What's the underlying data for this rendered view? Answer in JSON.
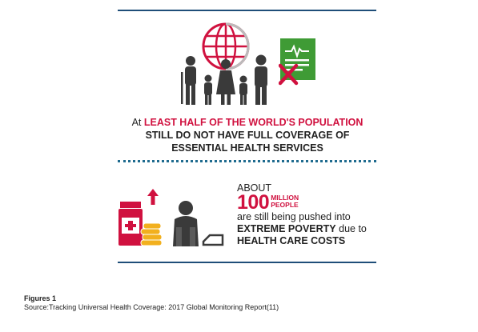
{
  "infographic": {
    "headline": {
      "lead": "At",
      "highlight": "LEAST HALF OF THE WORLD'S POPULATION",
      "line2": "STILL DO NOT HAVE FULL COVERAGE OF",
      "line3": "ESSENTIAL HEALTH SERVICES"
    },
    "stat": {
      "about": "ABOUT",
      "number": "100",
      "unit_line1": "MILLION",
      "unit_line2": "PEOPLE",
      "line1": "are still being pushed into",
      "line2_bold": "EXTREME POVERTY",
      "line2_rest": " due to",
      "line3": "HEALTH CARE COSTS"
    },
    "colors": {
      "red": "#d0113f",
      "navy": "#1f4e79",
      "green": "#3f9b35",
      "gray": "#3a3a3a",
      "gold": "#f2b01e"
    },
    "icons": [
      "globe-icon",
      "family-icon",
      "health-card-icon",
      "cross-mark-icon",
      "medicine-bottle-icon",
      "up-arrow-icon",
      "coins-icon",
      "distressed-person-icon",
      "empty-wallet-icon"
    ]
  },
  "caption": {
    "figure": "Figures 1",
    "source": "Source:Tracking Universal Health Coverage: 2017 Global Monitoring Report(11)"
  }
}
